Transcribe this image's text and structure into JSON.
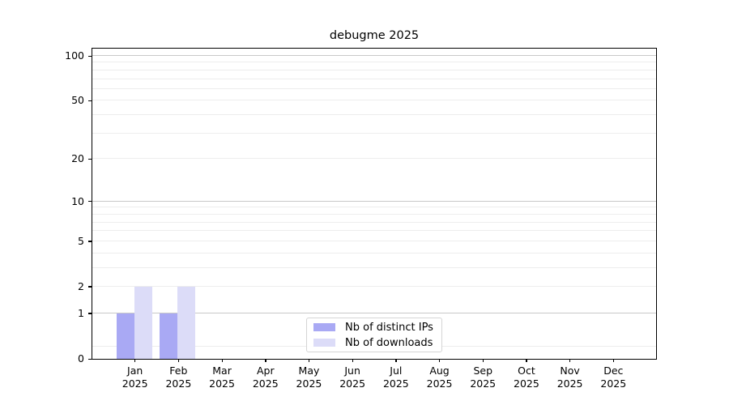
{
  "title": "debugme 2025",
  "chart_data": {
    "type": "bar",
    "title": "debugme 2025",
    "categories": [
      "Jan 2025",
      "Feb 2025",
      "Mar 2025",
      "Apr 2025",
      "May 2025",
      "Jun 2025",
      "Jul 2025",
      "Aug 2025",
      "Sep 2025",
      "Oct 2025",
      "Nov 2025",
      "Dec 2025"
    ],
    "series": [
      {
        "name": "Nb of distinct IPs",
        "color": "#a9a9f4",
        "values": [
          1,
          1,
          0,
          0,
          0,
          0,
          0,
          0,
          0,
          0,
          0,
          0
        ]
      },
      {
        "name": "Nb of downloads",
        "color": "#dcdcf8",
        "values": [
          2,
          2,
          0,
          0,
          0,
          0,
          0,
          0,
          0,
          0,
          0,
          0
        ]
      }
    ],
    "xlabel": "",
    "ylabel": "",
    "y_scale": "log1p",
    "y_ticks": [
      0,
      1,
      2,
      5,
      10,
      20,
      50,
      100
    ],
    "y_major_gridlines": [
      1,
      10,
      100
    ],
    "y_minor_gridlines": [
      0.2,
      2,
      3,
      4,
      5,
      6,
      7,
      8,
      9,
      20,
      30,
      40,
      50,
      60,
      70,
      80,
      90
    ],
    "ylim": [
      0,
      114
    ],
    "grid": "horizontal-only",
    "legend_position": "lower center"
  },
  "colors": {
    "major_grid": "#c9c9c9",
    "minor_grid": "#ededed",
    "axis": "#000000",
    "text": "#000000"
  }
}
